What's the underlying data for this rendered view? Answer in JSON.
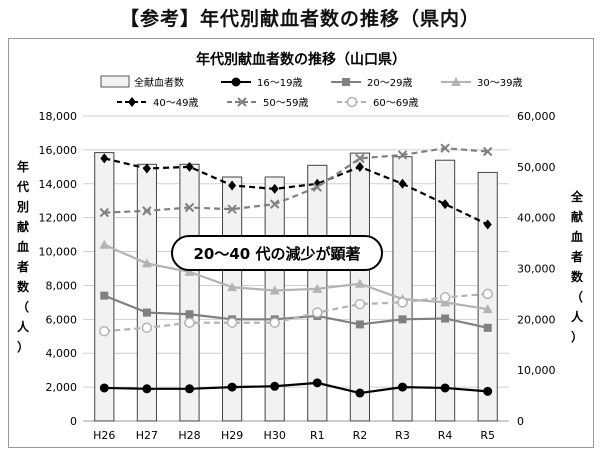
{
  "page_title": "【参考】年代別献血者数の推移（県内）",
  "chart_data": {
    "type": "bar",
    "title": "年代別献血者数の推移（山口県）",
    "categories": [
      "H26",
      "H27",
      "H28",
      "H29",
      "H30",
      "R1",
      "R2",
      "R3",
      "R4",
      "R5"
    ],
    "left_axis": {
      "label": "年代別献血者数（人）",
      "ylim": [
        0,
        18000
      ],
      "ticks": [
        "0",
        "2,000",
        "4,000",
        "6,000",
        "8,000",
        "10,000",
        "12,000",
        "14,000",
        "16,000",
        "18,000"
      ]
    },
    "right_axis": {
      "label": "全献血者数（人）",
      "ylim": [
        0,
        60000
      ],
      "ticks": [
        "0",
        "10,000",
        "20,000",
        "30,000",
        "40,000",
        "50,000",
        "60,000"
      ]
    },
    "bar_series": {
      "name": "全献血者数",
      "axis": "right",
      "values": [
        52800,
        50500,
        50500,
        48000,
        48000,
        50300,
        52700,
        52000,
        51300,
        48900
      ],
      "color": "#f2f2f2"
    },
    "line_series": [
      {
        "name": "16〜19歳",
        "values": [
          1950,
          1900,
          1900,
          2000,
          2050,
          2250,
          1650,
          2000,
          1950,
          1750
        ],
        "color": "#000000",
        "dash": "solid",
        "marker": "circle-filled"
      },
      {
        "name": "20〜29歳",
        "values": [
          7400,
          6400,
          6300,
          6000,
          6000,
          6200,
          5700,
          6000,
          6050,
          5500
        ],
        "color": "#808080",
        "dash": "solid",
        "marker": "square"
      },
      {
        "name": "30〜39歳",
        "values": [
          10400,
          9300,
          8800,
          7900,
          7700,
          7800,
          8100,
          7200,
          7000,
          6600
        ],
        "color": "#b3b3b3",
        "dash": "solid",
        "marker": "triangle"
      },
      {
        "name": "40〜49歳",
        "values": [
          15500,
          14900,
          15000,
          13900,
          13700,
          14000,
          15000,
          14000,
          12800,
          11600
        ],
        "color": "#000000",
        "dash": "dashed",
        "marker": "diamond"
      },
      {
        "name": "50〜59歳",
        "values": [
          12300,
          12400,
          12600,
          12500,
          12800,
          13800,
          15500,
          15700,
          16100,
          15900
        ],
        "color": "#808080",
        "dash": "dashed",
        "marker": "x"
      },
      {
        "name": "60〜69歳",
        "values": [
          5300,
          5500,
          5800,
          5800,
          5800,
          6400,
          6900,
          7000,
          7300,
          7500
        ],
        "color": "#b3b3b3",
        "dash": "dashed",
        "marker": "circle-open"
      }
    ],
    "annotation": "20〜40 代の減少が顕著",
    "legend_position": "top",
    "grid": "horizontal"
  }
}
